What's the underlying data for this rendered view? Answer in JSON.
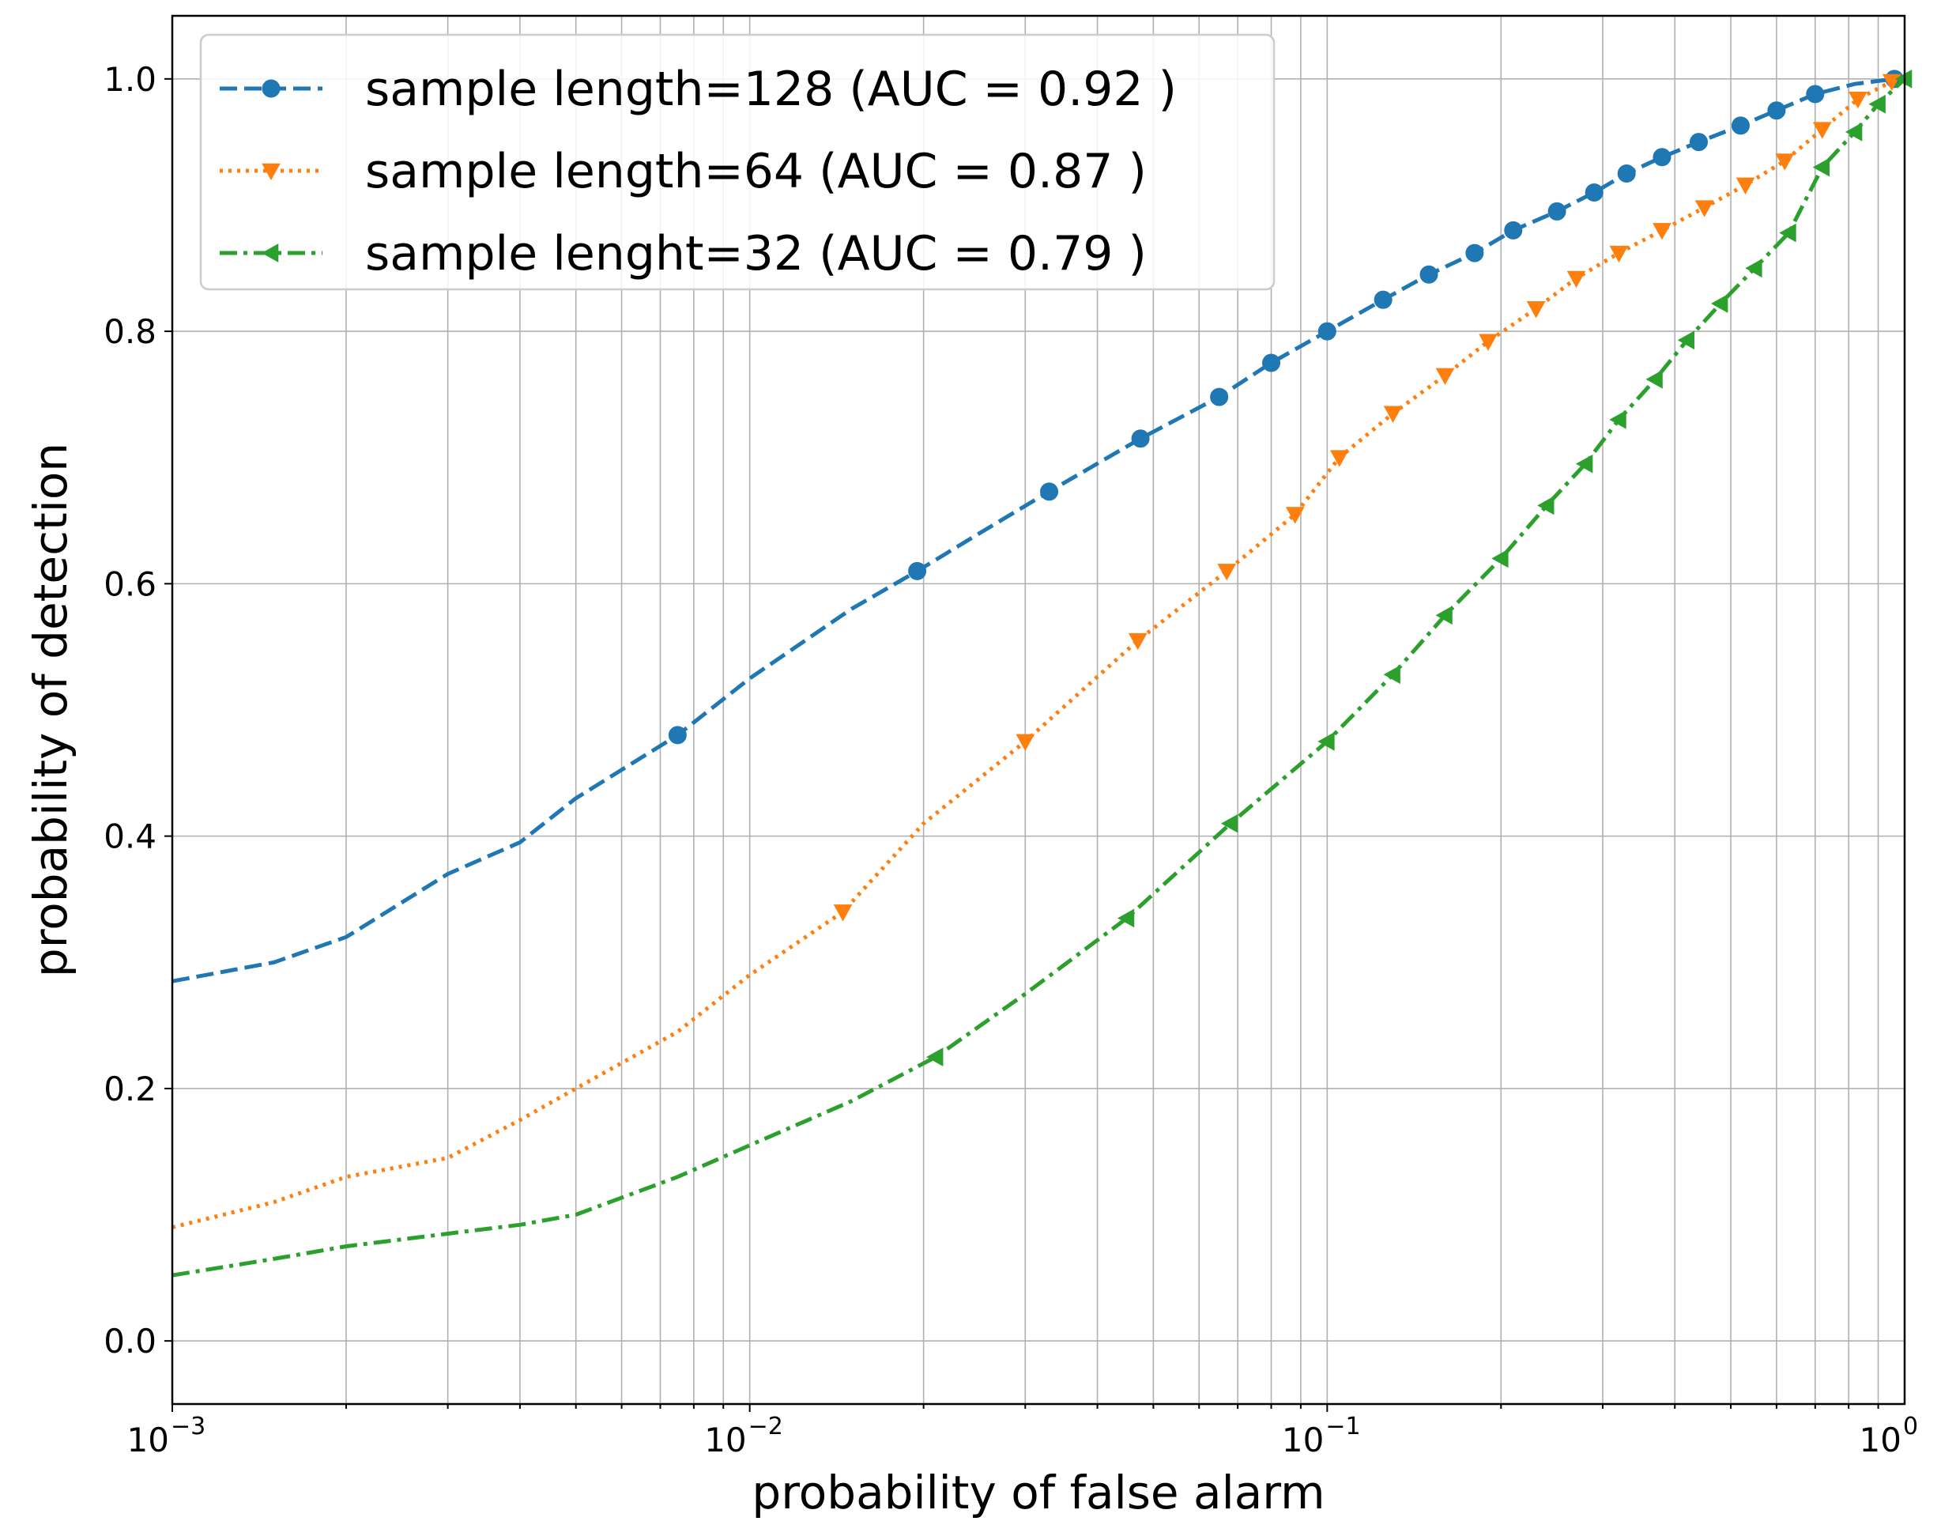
{
  "chart_data": {
    "type": "line",
    "title": "",
    "xlabel": "probability of false alarm",
    "ylabel": "probability of detection",
    "xscale": "log",
    "xlim": [
      0.001,
      1
    ],
    "ylim": [
      -0.05,
      1.05
    ],
    "grid": true,
    "legend_position": "top-left",
    "x_ticks": [
      {
        "value": 0.001,
        "base": "10",
        "exp": "−3"
      },
      {
        "value": 0.01,
        "base": "10",
        "exp": "−2"
      },
      {
        "value": 0.1,
        "base": "10",
        "exp": "−1"
      },
      {
        "value": 1,
        "base": "10",
        "exp": "0"
      }
    ],
    "y_ticks": [
      {
        "value": 0.0,
        "label": "0.0"
      },
      {
        "value": 0.2,
        "label": "0.2"
      },
      {
        "value": 0.4,
        "label": "0.4"
      },
      {
        "value": 0.6,
        "label": "0.6"
      },
      {
        "value": 0.8,
        "label": "0.8"
      },
      {
        "value": 1.0,
        "label": "1.0"
      }
    ],
    "series": [
      {
        "name": "sample length=128 (AUC = 0.92 )",
        "color": "#1f77b4",
        "linestyle": "dashed",
        "marker": "circle",
        "x": [
          0.001,
          0.0015,
          0.002,
          0.003,
          0.004,
          0.005,
          0.0075,
          0.01,
          0.015,
          0.0195,
          0.025,
          0.033,
          0.0475,
          0.065,
          0.08,
          0.1,
          0.125,
          0.15,
          0.18,
          0.21,
          0.25,
          0.29,
          0.33,
          0.38,
          0.44,
          0.52,
          0.6,
          0.7,
          0.82,
          0.96,
          1.0
        ],
        "y": [
          0.285,
          0.3,
          0.32,
          0.37,
          0.395,
          0.43,
          0.48,
          0.525,
          0.58,
          0.61,
          0.64,
          0.673,
          0.715,
          0.748,
          0.775,
          0.8,
          0.825,
          0.845,
          0.862,
          0.88,
          0.895,
          0.91,
          0.925,
          0.938,
          0.95,
          0.963,
          0.975,
          0.988,
          0.996,
          1.0,
          1.0
        ],
        "marker_indices": [
          6,
          9,
          11,
          12,
          13,
          14,
          15,
          16,
          17,
          18,
          19,
          20,
          21,
          22,
          23,
          24,
          25,
          26,
          27,
          29
        ]
      },
      {
        "name": "sample length=64 (AUC = 0.87 )",
        "color": "#ff7f0e",
        "linestyle": "dotted",
        "marker": "triangle-down",
        "x": [
          0.001,
          0.0015,
          0.002,
          0.003,
          0.004,
          0.005,
          0.0075,
          0.01,
          0.0145,
          0.02,
          0.03,
          0.047,
          0.067,
          0.088,
          0.105,
          0.13,
          0.16,
          0.19,
          0.23,
          0.27,
          0.32,
          0.38,
          0.45,
          0.53,
          0.62,
          0.72,
          0.83,
          0.95,
          1.0
        ],
        "y": [
          0.09,
          0.11,
          0.13,
          0.145,
          0.175,
          0.2,
          0.245,
          0.29,
          0.34,
          0.41,
          0.475,
          0.555,
          0.61,
          0.655,
          0.7,
          0.735,
          0.765,
          0.792,
          0.818,
          0.842,
          0.862,
          0.88,
          0.898,
          0.916,
          0.935,
          0.96,
          0.984,
          0.998,
          1.0
        ],
        "marker_indices": [
          8,
          10,
          11,
          12,
          13,
          14,
          15,
          16,
          17,
          18,
          19,
          20,
          21,
          22,
          23,
          24,
          25,
          26,
          27
        ]
      },
      {
        "name": "sample lenght=32 (AUC = 0.79 )",
        "color": "#2ca02c",
        "linestyle": "dashdot",
        "marker": "triangle-left",
        "x": [
          0.001,
          0.0015,
          0.002,
          0.003,
          0.004,
          0.005,
          0.0075,
          0.01,
          0.015,
          0.021,
          0.03,
          0.045,
          0.068,
          0.1,
          0.13,
          0.16,
          0.2,
          0.24,
          0.28,
          0.32,
          0.37,
          0.42,
          0.48,
          0.55,
          0.63,
          0.72,
          0.82,
          0.9,
          1.0
        ],
        "y": [
          0.052,
          0.065,
          0.075,
          0.085,
          0.092,
          0.1,
          0.13,
          0.155,
          0.19,
          0.225,
          0.275,
          0.335,
          0.41,
          0.475,
          0.528,
          0.575,
          0.62,
          0.662,
          0.695,
          0.73,
          0.762,
          0.793,
          0.822,
          0.85,
          0.878,
          0.93,
          0.958,
          0.98,
          1.0
        ],
        "marker_indices": [
          9,
          11,
          12,
          13,
          14,
          15,
          16,
          17,
          18,
          19,
          20,
          21,
          22,
          23,
          24,
          25,
          26,
          27,
          28
        ]
      }
    ]
  }
}
